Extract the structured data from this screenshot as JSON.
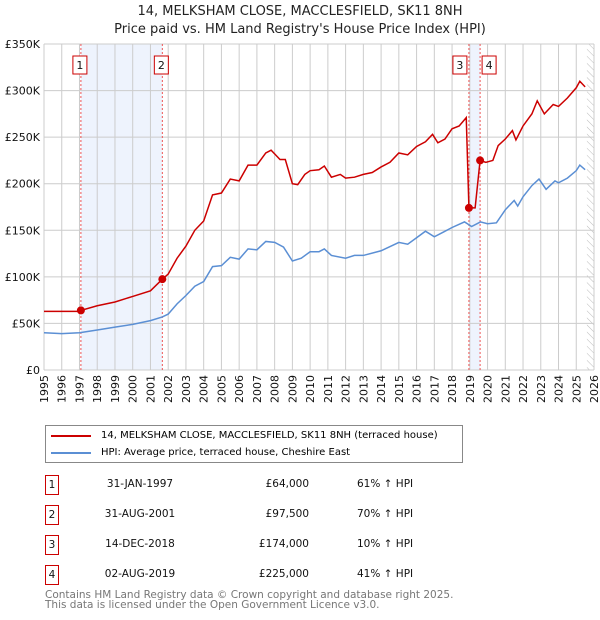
{
  "chart_data": {
    "type": "line",
    "title": "14, MELKSHAM CLOSE, MACCLESFIELD, SK11 8NH",
    "subtitle": "Price paid vs. HM Land Registry's House Price Index (HPI)",
    "xlim": [
      1995,
      2026
    ],
    "ylim": [
      0,
      350000
    ],
    "x_ticks": [
      "1995",
      "1996",
      "1997",
      "1998",
      "1999",
      "2000",
      "2001",
      "2002",
      "2003",
      "2004",
      "2005",
      "2006",
      "2007",
      "2008",
      "2009",
      "2010",
      "2011",
      "2012",
      "2013",
      "2014",
      "2015",
      "2016",
      "2017",
      "2018",
      "2019",
      "2020",
      "2021",
      "2022",
      "2023",
      "2024",
      "2025",
      "2026"
    ],
    "y_ticks": [
      {
        "v": 0,
        "label": "£0"
      },
      {
        "v": 50000,
        "label": "£50K"
      },
      {
        "v": 100000,
        "label": "£100K"
      },
      {
        "v": 150000,
        "label": "£150K"
      },
      {
        "v": 200000,
        "label": "£200K"
      },
      {
        "v": 250000,
        "label": "£250K"
      },
      {
        "v": 300000,
        "label": "£300K"
      },
      {
        "v": 350000,
        "label": "£350K"
      }
    ],
    "grid": true,
    "series": [
      {
        "name": "14, MELKSHAM CLOSE, MACCLESFIELD, SK11 8NH (terraced house)",
        "color": "#cc0000",
        "x": [
          1995,
          1996,
          1997,
          1997.08,
          1998,
          1999,
          2000,
          2001,
          2001.67,
          2002,
          2002.5,
          2003,
          2003.5,
          2004,
          2004.5,
          2005,
          2005.5,
          2006,
          2006.5,
          2007,
          2007.5,
          2007.8,
          2008,
          2008.3,
          2008.6,
          2009,
          2009.3,
          2009.7,
          2010,
          2010.5,
          2010.8,
          2011.2,
          2011.7,
          2012,
          2012.5,
          2013,
          2013.5,
          2014,
          2014.5,
          2015,
          2015.5,
          2016,
          2016.5,
          2016.9,
          2017.2,
          2017.6,
          2018,
          2018.4,
          2018.8,
          2018.95,
          2019.3,
          2019.58,
          2019.9,
          2020.3,
          2020.6,
          2021,
          2021.4,
          2021.6,
          2022,
          2022.5,
          2022.8,
          2023.2,
          2023.7,
          2024,
          2024.5,
          2025,
          2025.2,
          2025.5
        ],
        "y": [
          63,
          63,
          63,
          64,
          69,
          73,
          79,
          85,
          97.5,
          103,
          120,
          133,
          150,
          160,
          188,
          190,
          205,
          203,
          220,
          220,
          233,
          236,
          232,
          226,
          226,
          200,
          199,
          210,
          214,
          215,
          219,
          207,
          210,
          206,
          207,
          210,
          212,
          218,
          223,
          233,
          231,
          240,
          245,
          253,
          244,
          248,
          259,
          262,
          271,
          174,
          174,
          225,
          223,
          225,
          241,
          248,
          257,
          247,
          262,
          275,
          289,
          275,
          285,
          283,
          292,
          303,
          310,
          304
        ]
      },
      {
        "name": "HPI: Average price, terraced house, Cheshire East",
        "color": "#5b8fd4",
        "x": [
          1995,
          1996,
          1997,
          1998,
          1999,
          2000,
          2001,
          2001.67,
          2002,
          2002.5,
          2003,
          2003.5,
          2004,
          2004.5,
          2005,
          2005.5,
          2006,
          2006.5,
          2007,
          2007.5,
          2008,
          2008.5,
          2009,
          2009.5,
          2010,
          2010.5,
          2010.8,
          2011.2,
          2012,
          2012.5,
          2013,
          2014,
          2015,
          2015.5,
          2016,
          2016.5,
          2017,
          2017.5,
          2018,
          2018.7,
          2019.1,
          2019.6,
          2020,
          2020.5,
          2021,
          2021.5,
          2021.7,
          2022,
          2022.5,
          2022.9,
          2023.3,
          2023.8,
          2024,
          2024.5,
          2025,
          2025.2,
          2025.5
        ],
        "y": [
          40,
          39,
          40,
          43,
          46,
          49,
          53,
          57,
          60,
          71,
          80,
          90,
          95,
          111,
          112,
          121,
          119,
          130,
          129,
          138,
          137,
          132,
          117,
          120,
          127,
          127,
          130,
          123,
          120,
          123,
          123,
          128,
          137,
          135,
          142,
          149,
          143,
          148,
          153,
          159,
          154,
          159,
          157,
          158,
          172,
          182,
          176,
          186,
          198,
          205,
          194,
          203,
          201,
          206,
          214,
          220,
          215
        ]
      }
    ],
    "y_unit": "thousands GBP",
    "shaded_periods": [
      [
        1997.08,
        2001.67
      ],
      [
        2018.95,
        2019.58
      ]
    ],
    "hatched_from": 2025.6,
    "transactions": [
      {
        "n": "1",
        "date": "31-JAN-1997",
        "price": "£64,000",
        "hpi": "61% ↑ HPI",
        "x": 1997.08,
        "y": 64
      },
      {
        "n": "2",
        "date": "31-AUG-2001",
        "price": "£97,500",
        "hpi": "70% ↑ HPI",
        "x": 2001.67,
        "y": 97.5
      },
      {
        "n": "3",
        "date": "14-DEC-2018",
        "price": "£174,000",
        "hpi": "10% ↑ HPI",
        "x": 2018.95,
        "y": 174
      },
      {
        "n": "4",
        "date": "02-AUG-2019",
        "price": "£225,000",
        "hpi": "41% ↑ HPI",
        "x": 2019.58,
        "y": 225
      }
    ]
  },
  "footer": {
    "line1": "Contains HM Land Registry data © Crown copyright and database right 2025.",
    "line2": "This data is licensed under the Open Government Licence v3.0."
  }
}
